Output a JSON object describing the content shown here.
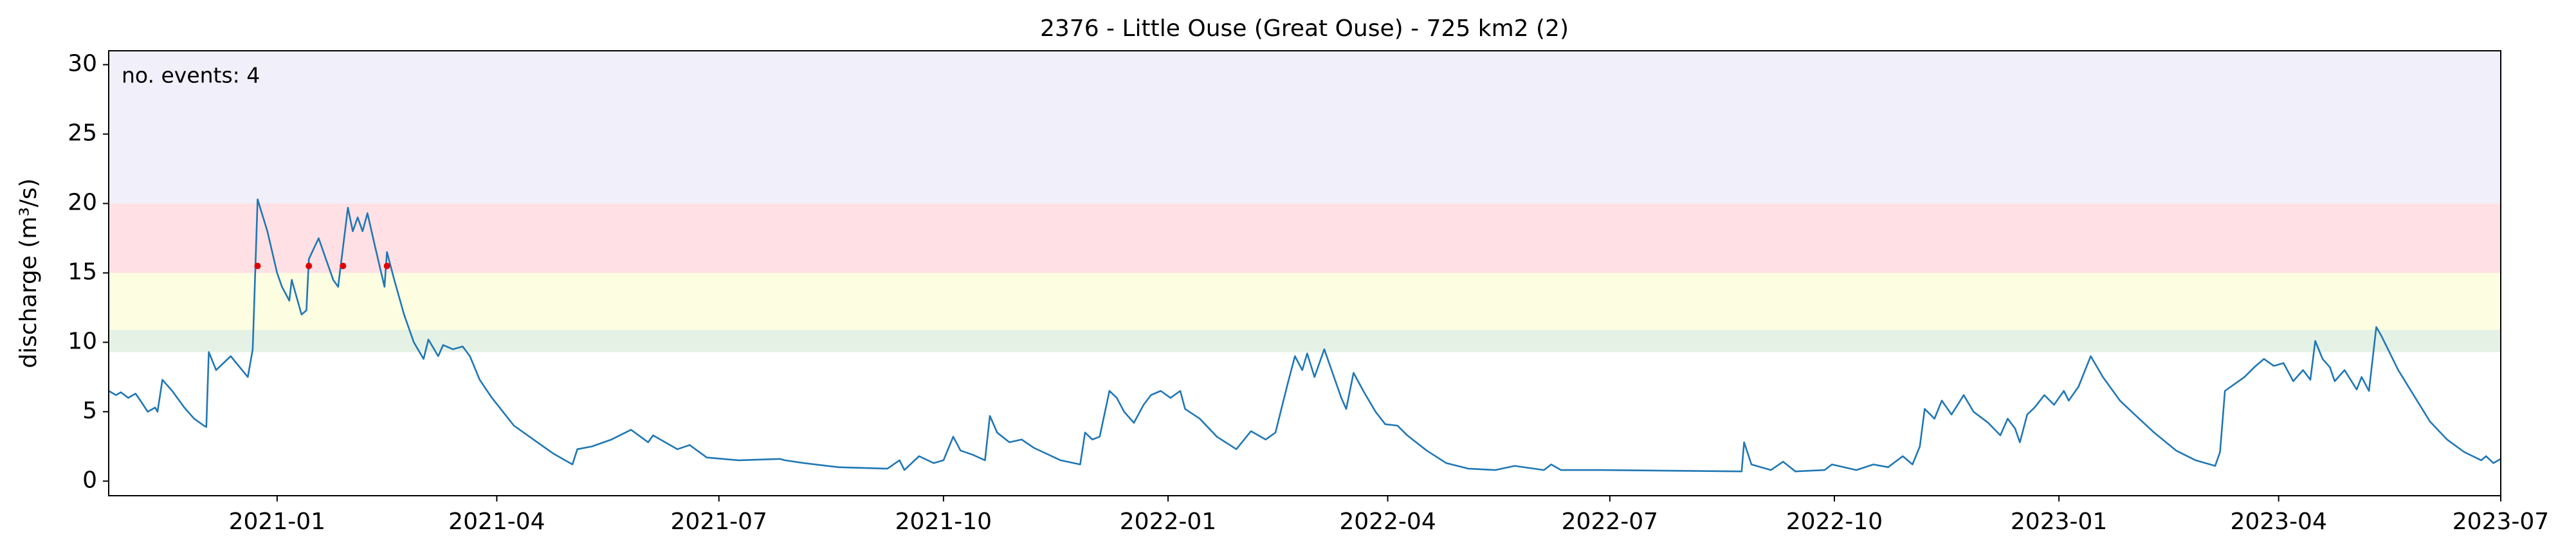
{
  "chart_data": {
    "type": "line",
    "title": "2376 - Little Ouse (Great Ouse) - 725 km2 (2)",
    "ylabel": "discharge (m³/s)",
    "annotation": "no. events: 4",
    "annotation_color": "#e00000",
    "color": "#1f77b4",
    "xlim": [
      18559,
      19539
    ],
    "ylim": [
      -1.05,
      31
    ],
    "yticks": [
      0,
      5,
      10,
      15,
      20,
      25,
      30
    ],
    "xticks": [
      {
        "value": 18628,
        "label": "2021-01"
      },
      {
        "value": 18718,
        "label": "2021-04"
      },
      {
        "value": 18809,
        "label": "2021-07"
      },
      {
        "value": 18901,
        "label": "2021-10"
      },
      {
        "value": 18993,
        "label": "2022-01"
      },
      {
        "value": 19083,
        "label": "2022-04"
      },
      {
        "value": 19174,
        "label": "2022-07"
      },
      {
        "value": 19266,
        "label": "2022-10"
      },
      {
        "value": 19358,
        "label": "2023-01"
      },
      {
        "value": 19448,
        "label": "2023-04"
      },
      {
        "value": 19539,
        "label": "2023-07"
      }
    ],
    "bands": [
      {
        "from": 9.3,
        "to": 10.9,
        "color": "#e4f1e4"
      },
      {
        "from": 10.9,
        "to": 15.0,
        "color": "#fdfde2"
      },
      {
        "from": 15.0,
        "to": 20.0,
        "color": "#ffe1e5"
      },
      {
        "from": 20.0,
        "to": 31,
        "color": "#f1eff9"
      }
    ],
    "x": [
      18559,
      18562,
      18564,
      18567,
      18570,
      18572,
      18575,
      18578,
      18579,
      18581,
      18585,
      18590,
      18594,
      18598,
      18599,
      18600,
      18603,
      18609,
      18616,
      18618,
      18620,
      18624,
      18628,
      18630,
      18633,
      18634,
      18638,
      18640,
      18641,
      18645,
      18648,
      18651,
      18653,
      18657,
      18659,
      18661,
      18663,
      18665,
      18668,
      18672,
      18673,
      18676,
      18680,
      18684,
      18688,
      18690,
      18694,
      18696,
      18700,
      18704,
      18707,
      18711,
      18716,
      18725,
      18733,
      18741,
      18749,
      18751,
      18757,
      18765,
      18773,
      18780,
      18782,
      18792,
      18797,
      18804,
      18817,
      18834,
      18836,
      18844,
      18858,
      18878,
      18883,
      18885,
      18891,
      18897,
      18901,
      18905,
      18908,
      18913,
      18918,
      18920,
      18923,
      18928,
      18933,
      18938,
      18949,
      18957,
      18959,
      18962,
      18965,
      18969,
      18972,
      18975,
      18979,
      18983,
      18986,
      18990,
      18994,
      18998,
      19000,
      19006,
      19013,
      19021,
      19027,
      19033,
      19037,
      19042,
      19045,
      19048,
      19050,
      19053,
      19057,
      19060,
      19064,
      19066,
      19069,
      19073,
      19078,
      19082,
      19087,
      19091,
      19099,
      19107,
      19116,
      19127,
      19135,
      19147,
      19150,
      19154,
      19171,
      19228,
      19229,
      19232,
      19240,
      19245,
      19250,
      19262,
      19265,
      19275,
      19282,
      19288,
      19294,
      19298,
      19301,
      19303,
      19307,
      19310,
      19314,
      19319,
      19323,
      19329,
      19334,
      19337,
      19340,
      19342,
      19345,
      19348,
      19352,
      19356,
      19360,
      19362,
      19366,
      19371,
      19376,
      19383,
      19389,
      19397,
      19406,
      19414,
      19422,
      19424,
      19426,
      19430,
      19434,
      19438,
      19442,
      19446,
      19450,
      19454,
      19458,
      19461,
      19463,
      19466,
      19469,
      19471,
      19475,
      19480,
      19482,
      19485,
      19488,
      19490,
      19497,
      19504,
      19510,
      19517,
      19524,
      19531,
      19533,
      19536,
      19539
    ],
    "values": [
      6.5,
      6.2,
      6.4,
      6.0,
      6.3,
      5.8,
      5.0,
      5.3,
      5.0,
      7.3,
      6.5,
      5.3,
      4.5,
      4.0,
      3.9,
      9.3,
      8.0,
      9.0,
      7.5,
      9.5,
      20.3,
      18.0,
      15.0,
      14.0,
      13.0,
      14.5,
      12.0,
      12.3,
      16.0,
      17.5,
      16.0,
      14.5,
      14.0,
      19.7,
      18.0,
      19.0,
      18.0,
      19.3,
      17.0,
      14.0,
      16.5,
      14.5,
      12.0,
      10.0,
      8.8,
      10.2,
      9.0,
      9.8,
      9.5,
      9.7,
      9.0,
      7.3,
      6.0,
      4.0,
      3.0,
      2.0,
      1.2,
      2.3,
      2.5,
      3.0,
      3.7,
      2.8,
      3.3,
      2.3,
      2.6,
      1.7,
      1.5,
      1.6,
      1.5,
      1.3,
      1.0,
      0.9,
      1.5,
      0.8,
      1.8,
      1.3,
      1.5,
      3.2,
      2.2,
      1.9,
      1.5,
      4.7,
      3.5,
      2.8,
      3.0,
      2.4,
      1.5,
      1.2,
      3.5,
      3.0,
      3.2,
      6.5,
      6.0,
      5.0,
      4.2,
      5.5,
      6.2,
      6.5,
      6.0,
      6.5,
      5.2,
      4.5,
      3.2,
      2.3,
      3.6,
      3.0,
      3.5,
      7.0,
      9.0,
      8.0,
      9.2,
      7.5,
      9.5,
      8.0,
      6.0,
      5.2,
      7.8,
      6.5,
      5.0,
      4.1,
      4.0,
      3.3,
      2.2,
      1.3,
      0.9,
      0.8,
      1.1,
      0.8,
      1.2,
      0.8,
      0.8,
      0.7,
      2.8,
      1.2,
      0.8,
      1.4,
      0.7,
      0.8,
      1.2,
      0.8,
      1.2,
      1.0,
      1.8,
      1.2,
      2.5,
      5.2,
      4.5,
      5.8,
      4.8,
      6.2,
      5.0,
      4.2,
      3.3,
      4.5,
      3.8,
      2.8,
      4.8,
      5.3,
      6.2,
      5.5,
      6.5,
      5.8,
      6.8,
      9.0,
      7.5,
      5.8,
      4.8,
      3.5,
      2.2,
      1.5,
      1.1,
      2.1,
      6.5,
      7.0,
      7.5,
      8.2,
      8.8,
      8.3,
      8.5,
      7.2,
      8.0,
      7.3,
      10.1,
      8.8,
      8.2,
      7.2,
      8.0,
      6.6,
      7.5,
      6.5,
      11.1,
      10.5,
      8.0,
      6.0,
      4.3,
      3.0,
      2.1,
      1.5,
      1.8,
      1.3,
      1.6
    ],
    "events": {
      "color": "#e00000",
      "x": [
        18620,
        18641,
        18655,
        18673
      ],
      "values": [
        15.5,
        15.5,
        15.5,
        15.5
      ]
    }
  }
}
